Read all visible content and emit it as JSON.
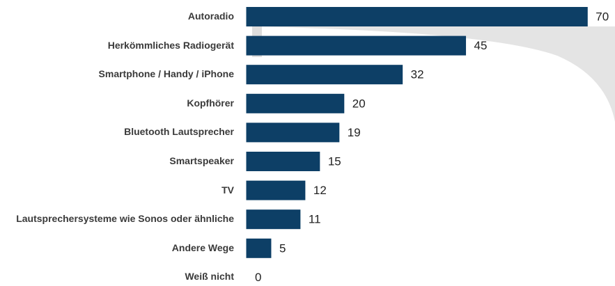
{
  "chart_data": {
    "type": "bar",
    "orientation": "horizontal",
    "color": "#0d3f66",
    "categories": [
      "Autoradio",
      "Herkömmliches Radiogerät",
      "Smartphone / Handy / iPhone",
      "Kopfhörer",
      "Bluetooth Lautsprecher",
      "Smartspeaker",
      "TV",
      "Lautsprechersysteme wie Sonos oder ähnliche",
      "Andere Wege",
      "Weiß nicht"
    ],
    "values": [
      70,
      45,
      32,
      20,
      19,
      15,
      12,
      11,
      5,
      0
    ]
  }
}
